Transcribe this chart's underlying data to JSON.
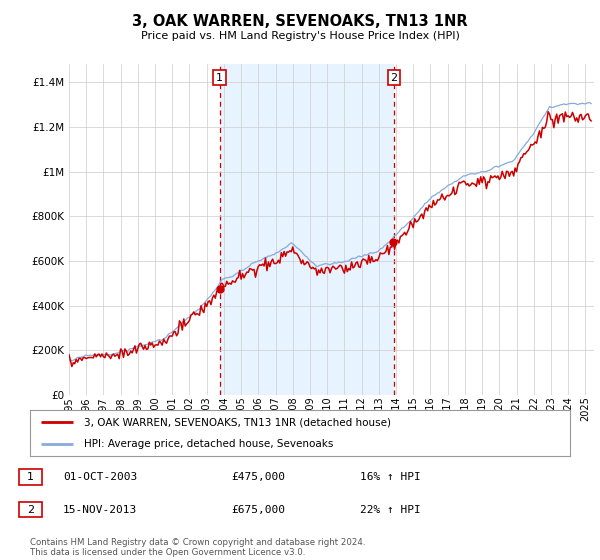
{
  "title": "3, OAK WARREN, SEVENOAKS, TN13 1NR",
  "subtitle": "Price paid vs. HM Land Registry's House Price Index (HPI)",
  "ytick_values": [
    0,
    200000,
    400000,
    600000,
    800000,
    1000000,
    1200000,
    1400000
  ],
  "ylim": [
    0,
    1480000
  ],
  "xlim_start": 1995.0,
  "xlim_end": 2025.5,
  "purchase1_date": 2003.75,
  "purchase1_price": 475000,
  "purchase2_date": 2013.875,
  "purchase2_price": 675000,
  "line_color_red": "#cc0000",
  "line_color_blue": "#88aadd",
  "shade_color": "#ddeeff",
  "vline_color": "#cc0000",
  "grid_color": "#cccccc",
  "bg_color": "#ffffff",
  "legend_label_red": "3, OAK WARREN, SEVENOAKS, TN13 1NR (detached house)",
  "legend_label_blue": "HPI: Average price, detached house, Sevenoaks",
  "footer": "Contains HM Land Registry data © Crown copyright and database right 2024.\nThis data is licensed under the Open Government Licence v3.0.",
  "box_labels": [
    {
      "num": "1",
      "date": "01-OCT-2003",
      "price": "£475,000",
      "hpi": "16% ↑ HPI"
    },
    {
      "num": "2",
      "date": "15-NOV-2013",
      "price": "£675,000",
      "hpi": "22% ↑ HPI"
    }
  ]
}
